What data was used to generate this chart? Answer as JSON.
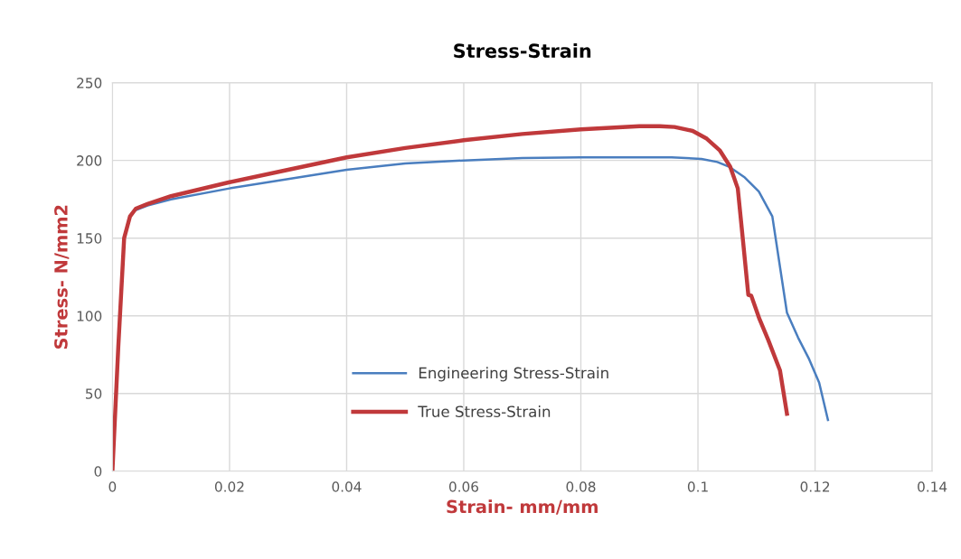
{
  "chart_data": {
    "type": "line",
    "title": "Stress-Strain",
    "xlabel": "Strain- mm/mm",
    "ylabel": "Stress- N/mm2",
    "xlim": [
      0,
      0.14
    ],
    "xticks": [
      0,
      0.02,
      0.04,
      0.06,
      0.08,
      0.1,
      0.12,
      0.14
    ],
    "ylim": [
      0,
      250
    ],
    "yticks": [
      0,
      50,
      100,
      150,
      200,
      250
    ],
    "grid": true,
    "legend": "bottom",
    "marker": "none",
    "line_style": "solid",
    "series": [
      {
        "name": "Engineering Stress-Strain",
        "color": "#4a7ebf",
        "x": [
          0.004,
          0.006,
          0.01,
          0.02,
          0.03,
          0.04,
          0.05,
          0.06,
          0.07,
          0.08,
          0.09,
          0.0955,
          0.1006,
          0.1033,
          0.1053,
          0.108,
          0.1104,
          0.1127,
          0.1152,
          0.1171,
          0.119,
          0.1207,
          0.1222
        ],
        "values": [
          168,
          171,
          175,
          182,
          188,
          194,
          198,
          200,
          201.5,
          202,
          202,
          202,
          201,
          199,
          196,
          189,
          180,
          164,
          102,
          86,
          72,
          57,
          33
        ]
      },
      {
        "name": "True Stress-Strain",
        "color": "#c0393b",
        "x": [
          0,
          0.001,
          0.002,
          0.003,
          0.004,
          0.006,
          0.01,
          0.02,
          0.03,
          0.04,
          0.05,
          0.06,
          0.07,
          0.08,
          0.09,
          0.0935,
          0.096,
          0.0991,
          0.1015,
          0.1037,
          0.1055,
          0.1068,
          0.1077,
          0.1086,
          0.1091,
          0.1105,
          0.112,
          0.114,
          0.1152
        ],
        "values": [
          0,
          80,
          150,
          164,
          169,
          172,
          177,
          186,
          194,
          202,
          208,
          213,
          217,
          220,
          222,
          222,
          221.5,
          219,
          214,
          206.6,
          196,
          182,
          148,
          113.5,
          113,
          98,
          84.5,
          65,
          37
        ]
      }
    ]
  }
}
